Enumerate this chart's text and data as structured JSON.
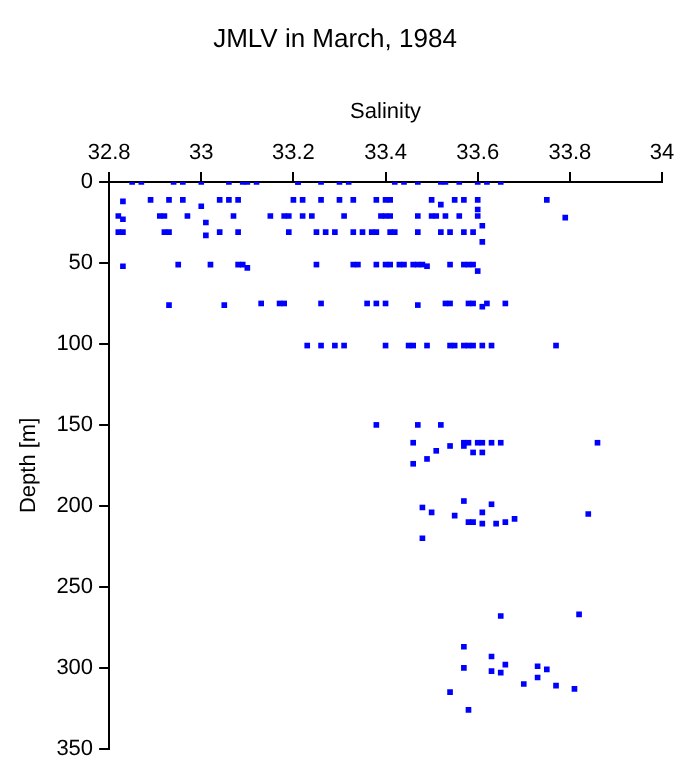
{
  "chart_data": {
    "type": "scatter",
    "title": "JMLV in March, 1984",
    "xlabel": "Salinity",
    "ylabel": "Depth [m]",
    "xlim": [
      32.8,
      34
    ],
    "xticks": [
      32.8,
      33,
      33.2,
      33.4,
      33.6,
      33.8,
      34
    ],
    "ylim": [
      350,
      0
    ],
    "yticks": [
      0,
      50,
      100,
      150,
      200,
      250,
      300,
      350
    ],
    "grid": false,
    "legend": false,
    "marker": "square",
    "series": [
      {
        "color": "#0000ff",
        "x": [
          32.85,
          32.87,
          32.94,
          32.96,
          33.0,
          33.06,
          33.09,
          33.1,
          33.12,
          33.21,
          33.21,
          33.26,
          33.3,
          33.32,
          33.42,
          33.44,
          33.47,
          33.52,
          33.53,
          33.56,
          33.6,
          33.62,
          33.65,
          32.83,
          32.89,
          32.93,
          32.96,
          33.0,
          33.04,
          33.06,
          33.08,
          33.2,
          33.22,
          33.26,
          33.3,
          33.33,
          33.38,
          33.4,
          33.41,
          33.5,
          33.52,
          33.55,
          33.57,
          33.6,
          33.75,
          32.82,
          32.83,
          32.91,
          32.92,
          32.97,
          33.07,
          33.15,
          33.18,
          33.19,
          33.22,
          33.24,
          33.31,
          33.39,
          33.4,
          33.41,
          33.47,
          33.5,
          33.51,
          33.53,
          33.56,
          33.6,
          33.79,
          33.01,
          33.01,
          33.61,
          33.6,
          32.82,
          32.83,
          32.92,
          32.93,
          33.04,
          33.08,
          33.19,
          33.25,
          33.27,
          33.29,
          33.33,
          33.35,
          33.37,
          33.38,
          33.41,
          33.42,
          33.47,
          33.52,
          33.54,
          33.57,
          33.59,
          33.61,
          32.83,
          32.95,
          33.02,
          33.08,
          33.09,
          33.1,
          33.25,
          33.33,
          33.34,
          33.38,
          33.4,
          33.41,
          33.43,
          33.44,
          33.46,
          33.47,
          33.48,
          33.49,
          33.54,
          33.57,
          33.58,
          33.59,
          33.6,
          32.93,
          33.05,
          33.13,
          33.17,
          33.18,
          33.26,
          33.36,
          33.38,
          33.4,
          33.47,
          33.53,
          33.54,
          33.58,
          33.59,
          33.61,
          33.62,
          33.66,
          33.23,
          33.26,
          33.29,
          33.31,
          33.4,
          33.45,
          33.46,
          33.49,
          33.54,
          33.55,
          33.57,
          33.58,
          33.59,
          33.61,
          33.63,
          33.77,
          33.38,
          33.47,
          33.52,
          33.46,
          33.57,
          33.58,
          33.6,
          33.61,
          33.63,
          33.65,
          33.86,
          33.54,
          33.57,
          33.51,
          33.59,
          33.61,
          33.49,
          33.46,
          33.57,
          33.63,
          33.48,
          33.5,
          33.61,
          33.55,
          33.84,
          33.68,
          33.58,
          33.59,
          33.66,
          33.61,
          33.64,
          33.48,
          33.65,
          33.82,
          33.57,
          33.63,
          33.66,
          33.57,
          33.73,
          33.75,
          33.63,
          33.65,
          33.73,
          33.7,
          33.77,
          33.81,
          33.54,
          33.58
        ],
        "values": [
          0,
          0,
          0,
          0,
          0,
          0,
          0,
          0,
          0,
          0,
          0,
          0,
          0,
          0,
          0,
          0,
          0,
          0,
          0,
          0,
          0,
          0,
          0,
          12,
          11,
          11,
          11,
          15,
          11,
          11,
          11,
          11,
          11,
          11,
          11,
          11,
          11,
          11,
          11,
          11,
          14,
          11,
          11,
          11,
          11,
          21,
          23,
          21,
          21,
          21,
          21,
          21,
          21,
          21,
          21,
          21,
          21,
          21,
          21,
          21,
          21,
          21,
          21,
          21,
          21,
          21,
          22,
          25,
          33,
          27,
          17,
          31,
          31,
          31,
          31,
          31,
          31,
          31,
          31,
          31,
          31,
          31,
          31,
          31,
          31,
          31,
          31,
          31,
          31,
          31,
          31,
          31,
          37,
          52,
          51,
          51,
          51,
          51,
          53,
          51,
          51,
          51,
          51,
          51,
          51,
          51,
          51,
          51,
          51,
          51,
          52,
          51,
          51,
          51,
          51,
          55,
          76,
          76,
          75,
          75,
          75,
          75,
          75,
          75,
          75,
          76,
          75,
          75,
          75,
          75,
          77,
          75,
          75,
          101,
          101,
          101,
          101,
          101,
          101,
          101,
          101,
          101,
          101,
          101,
          101,
          101,
          101,
          101,
          101,
          150,
          150,
          150,
          161,
          161,
          161,
          161,
          161,
          161,
          161,
          161,
          163,
          163,
          166,
          167,
          167,
          171,
          174,
          197,
          199,
          201,
          204,
          204,
          206,
          205,
          208,
          210,
          210,
          210,
          211,
          211,
          220,
          268,
          267,
          287,
          293,
          298,
          300,
          299,
          301,
          302,
          303,
          306,
          310,
          311,
          313,
          315,
          326
        ]
      }
    ]
  }
}
